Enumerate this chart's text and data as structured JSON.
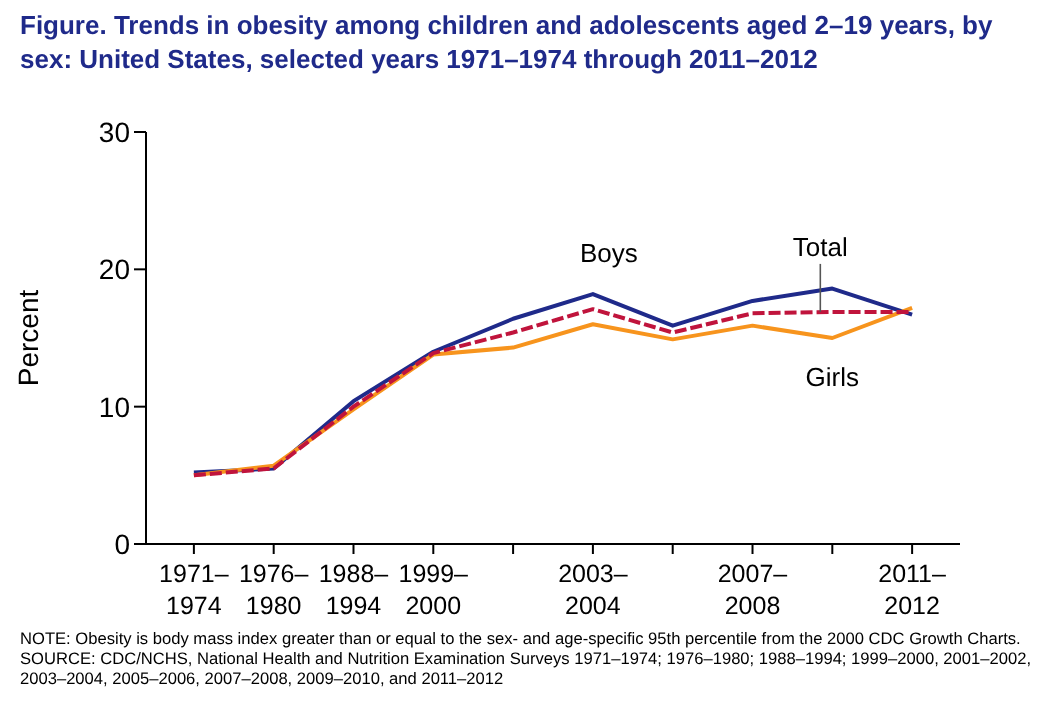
{
  "chart_data": {
    "type": "line",
    "title": "Figure. Trends in obesity among children and adolescents aged 2–19 years, by sex: United States, selected years 1971–1974 through 2011–2012",
    "ylabel": "Percent",
    "categories": [
      "1971–\n1974",
      "1976–\n1980",
      "1988–\n1994",
      "1999–\n2000",
      null,
      "2003–\n2004",
      null,
      "2007–\n2008",
      null,
      "2011–\n2012"
    ],
    "ylim": [
      0,
      30
    ],
    "yticks": [
      0,
      10,
      20,
      30
    ],
    "series": [
      {
        "name": "Boys",
        "color": "#1f2a8a",
        "line_style": "solid",
        "values": [
          5.2,
          5.5,
          10.4,
          14.0,
          16.4,
          18.2,
          15.9,
          17.7,
          18.6,
          16.7
        ]
      },
      {
        "name": "Total",
        "color": "#c0143c",
        "line_style": "dashed",
        "values": [
          5.0,
          5.5,
          10.0,
          13.9,
          15.4,
          17.1,
          15.4,
          16.8,
          16.9,
          16.9
        ]
      },
      {
        "name": "Girls",
        "color": "#f7941d",
        "line_style": "solid",
        "values": [
          5.0,
          5.7,
          9.8,
          13.8,
          14.3,
          16.0,
          14.9,
          15.9,
          15.0,
          17.2
        ]
      }
    ],
    "marker": "none",
    "annotations": [
      "NOTE: Obesity is body mass index greater than or equal to the sex- and age-specific 95th percentile from the 2000 CDC Growth Charts.",
      "SOURCE: CDC/NCHS, National Health and Nutrition Examination Surveys 1971–1974; 1976–1980; 1988–1994; 1999–2000, 2001–2002, 2003–2004, 2005–2006, 2007–2008, 2009–2010, and 2011–2012"
    ]
  }
}
